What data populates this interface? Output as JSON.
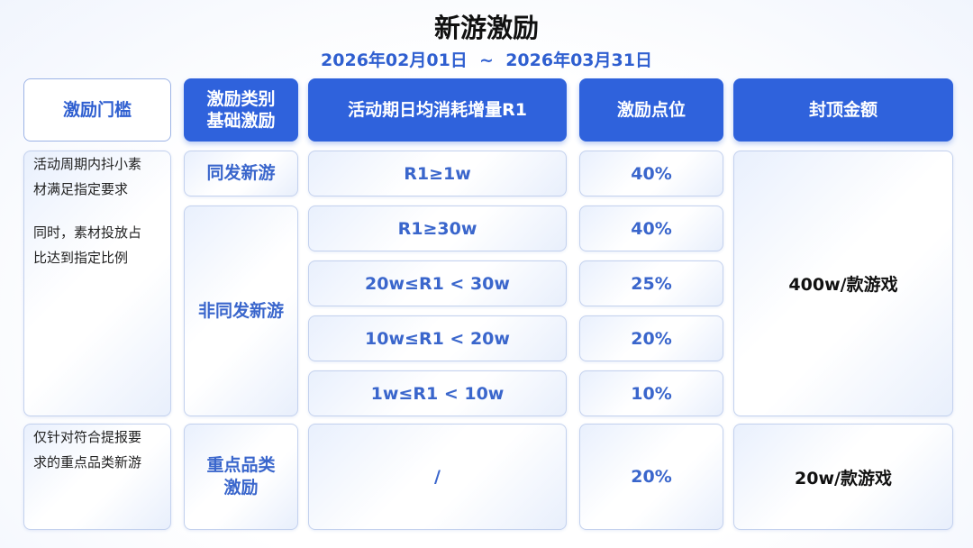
{
  "header": {
    "title": "新游激励",
    "date_range": "2026年02月01日  ~  2026年03月31日"
  },
  "table": {
    "columns": [
      [
        "激励门槛"
      ],
      [
        "激励类别",
        "基础激励"
      ],
      [
        "活动期日均消耗增量R1"
      ],
      [
        "激励点位"
      ],
      [
        "封顶金额"
      ]
    ],
    "groups": [
      {
        "threshold": [
          "活动周期内抖小素材满足指定要求",
          "同时，素材投放占比达到指定比例"
        ],
        "cap": "400w/款游戏",
        "categories": [
          {
            "name": "同发新游",
            "rows": [
              {
                "range": "R1≥1w",
                "rate": "40%"
              }
            ]
          },
          {
            "name": "非同发新游",
            "rows": [
              {
                "range": "R1≥30w",
                "rate": "40%"
              },
              {
                "range": "20w≤R1 < 30w",
                "rate": "25%"
              },
              {
                "range": "10w≤R1 < 20w",
                "rate": "20%"
              },
              {
                "range": "1w≤R1 < 10w",
                "rate": "10%"
              }
            ]
          }
        ]
      },
      {
        "threshold": [
          "仅针对符合提报要求的重点品类新游"
        ],
        "cap": "20w/款游戏",
        "categories": [
          {
            "name": "重点品类激励",
            "rows": [
              {
                "range": "/",
                "rate": "20%"
              }
            ]
          }
        ]
      }
    ]
  }
}
